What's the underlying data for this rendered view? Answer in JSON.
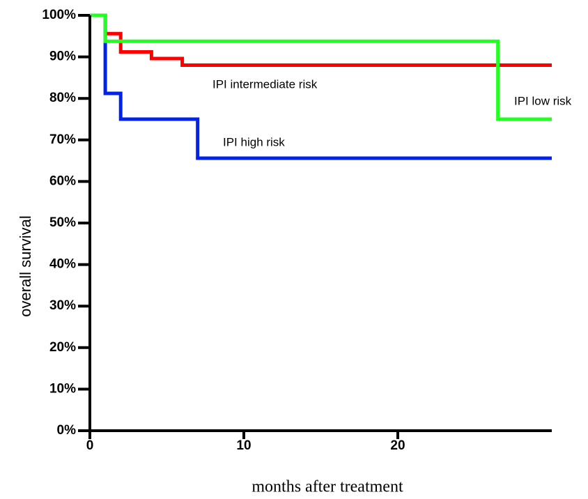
{
  "chart_data": {
    "type": "line",
    "step": true,
    "xlabel": "months after treatment",
    "ylabel": "overall survival",
    "xlim": [
      0,
      30
    ],
    "ylim": [
      0,
      100
    ],
    "xticks": [
      0,
      10,
      20
    ],
    "yticks": [
      {
        "value": 0,
        "label": "0%"
      },
      {
        "value": 10,
        "label": "10%"
      },
      {
        "value": 20,
        "label": "20%"
      },
      {
        "value": 30,
        "label": "30%"
      },
      {
        "value": 40,
        "label": "40%"
      },
      {
        "value": 50,
        "label": "50%"
      },
      {
        "value": 60,
        "label": "60%"
      },
      {
        "value": 70,
        "label": "70%"
      },
      {
        "value": 80,
        "label": "80%"
      },
      {
        "value": 90,
        "label": "90%"
      },
      {
        "value": 100,
        "label": "100%"
      }
    ],
    "series": [
      {
        "name": "IPI intermediate risk",
        "color": "#ff0000",
        "x": [
          0,
          1,
          2,
          4,
          6,
          30
        ],
        "values": [
          100,
          95.6,
          91.2,
          89.6,
          88,
          88
        ]
      },
      {
        "name": "IPI high risk",
        "color": "#0022ee",
        "x": [
          0,
          1,
          2,
          7,
          30
        ],
        "values": [
          100,
          81.2,
          75,
          65.6,
          65.6
        ]
      },
      {
        "name": "IPI low risk",
        "color": "#22ff22",
        "x": [
          0,
          1,
          26.5,
          30
        ],
        "values": [
          100,
          93.75,
          75,
          75
        ]
      }
    ]
  }
}
